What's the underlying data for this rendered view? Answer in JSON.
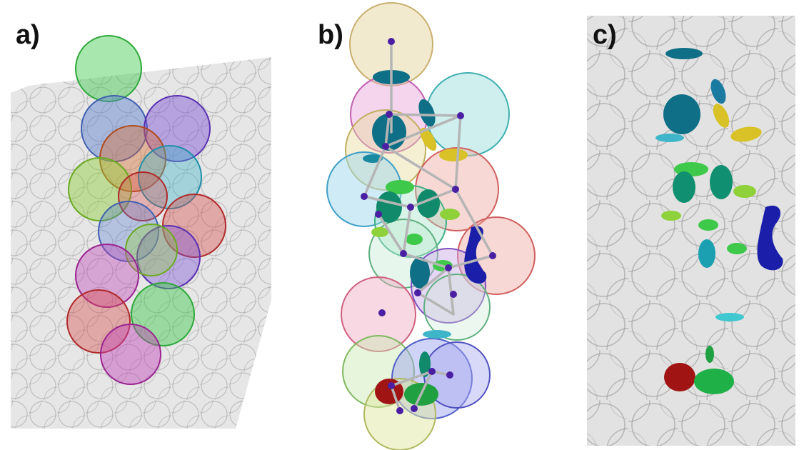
{
  "figure": {
    "panels": [
      {
        "id": "a",
        "label": "a)"
      },
      {
        "id": "b",
        "label": "b)"
      },
      {
        "id": "c",
        "label": "c)"
      }
    ]
  },
  "colors": {
    "background_mesh": "#9a9a9a",
    "node": "#4b1fa3",
    "edge": "#b5b5b5",
    "green": "#3ec94a",
    "blue": "#5a7fd0",
    "purple": "#7a4fd6",
    "orange": "#d96a2c",
    "teal": "#3fb5c9",
    "lime": "#8fd13a",
    "red": "#d94a4a",
    "magenta": "#c044b8",
    "yellow": "#d8c228",
    "dark_teal": "#0f6f86",
    "dark_red": "#a01414",
    "navy": "#1a1ea8"
  }
}
